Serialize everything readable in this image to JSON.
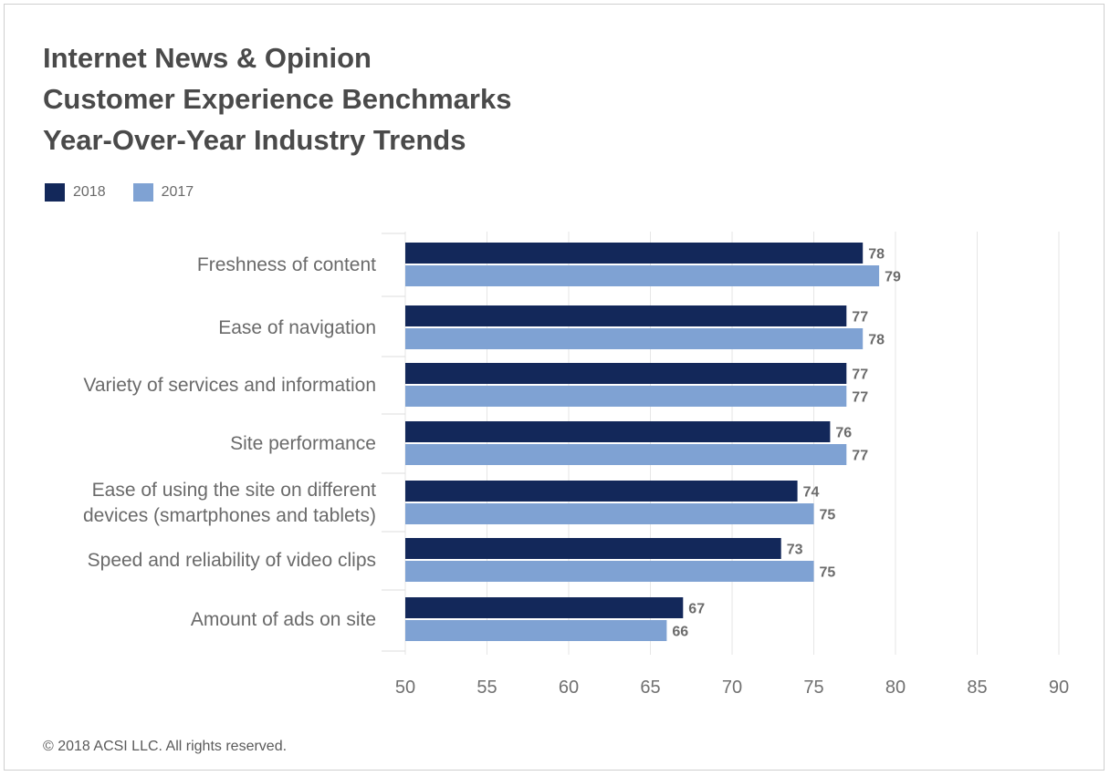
{
  "chart_data": {
    "type": "bar",
    "orientation": "horizontal",
    "title_lines": [
      "Internet News & Opinion",
      "Customer Experience Benchmarks",
      "Year-Over-Year Industry Trends"
    ],
    "categories": [
      [
        "Freshness of content"
      ],
      [
        "Ease of navigation"
      ],
      [
        "Variety of services and information"
      ],
      [
        "Site performance"
      ],
      [
        "Ease of using the site on different",
        "devices (smartphones and tablets)"
      ],
      [
        "Speed and reliability of video clips"
      ],
      [
        "Amount of ads on site"
      ]
    ],
    "series": [
      {
        "name": "2018",
        "color": "#13285a",
        "values": [
          78,
          77,
          77,
          76,
          74,
          73,
          67
        ]
      },
      {
        "name": "2017",
        "color": "#7fa2d3",
        "values": [
          79,
          78,
          77,
          77,
          75,
          75,
          66
        ]
      }
    ],
    "xlim": [
      50,
      90
    ],
    "xticks": [
      50,
      55,
      60,
      65,
      70,
      75,
      80,
      85,
      90
    ],
    "grid": true,
    "legend_position": "top-left",
    "data_labels": true
  },
  "footer": "© 2018 ACSI LLC. All rights reserved."
}
